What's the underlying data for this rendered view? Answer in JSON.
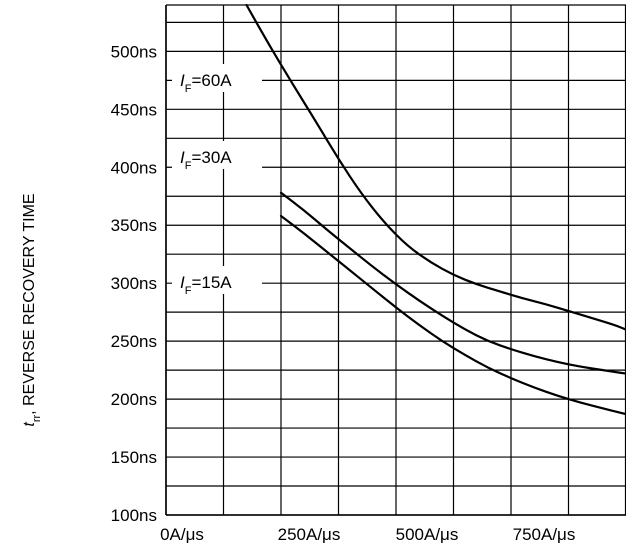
{
  "chart_data": {
    "type": "line",
    "xlabel": "",
    "ylabel": {
      "main": "t",
      "sub": "rr",
      "text": ", REVERSE RECOVERY TIME"
    },
    "x_ticks": [
      "0A/μs",
      "250A/μs",
      "500A/μs",
      "750A/μs"
    ],
    "y_ticks": [
      "100ns",
      "150ns",
      "200ns",
      "250ns",
      "300ns",
      "350ns",
      "400ns",
      "450ns",
      "500ns"
    ],
    "xlim": [
      0,
      1000
    ],
    "ylim": [
      100,
      540
    ],
    "grid": true,
    "series": [
      {
        "name": "60A",
        "label": {
          "var": "I",
          "sub": "F",
          "value": "=60A"
        },
        "x": [
          175,
          225,
          275,
          325,
          375,
          425,
          475,
          525,
          575,
          625,
          675,
          725,
          775,
          825,
          875,
          925,
          975,
          1000
        ],
        "y": [
          540,
          505,
          472,
          440,
          407,
          377,
          352,
          332,
          318,
          307,
          299,
          293,
          287,
          282,
          276,
          270,
          264,
          260
        ]
      },
      {
        "name": "30A",
        "label": {
          "var": "I",
          "sub": "F",
          "value": "=30A"
        },
        "x": [
          250,
          300,
          350,
          400,
          450,
          500,
          550,
          600,
          650,
          700,
          750,
          800,
          850,
          900,
          950,
          1000
        ],
        "y": [
          378,
          363,
          346,
          330,
          314,
          299,
          285,
          272,
          260,
          250,
          243,
          237,
          232,
          228,
          225,
          222
        ]
      },
      {
        "name": "15A",
        "label": {
          "var": "I",
          "sub": "F",
          "value": "=15A"
        },
        "x": [
          250,
          300,
          350,
          400,
          450,
          500,
          550,
          600,
          650,
          700,
          750,
          800,
          850,
          900,
          950,
          1000
        ],
        "y": [
          358,
          343,
          327,
          311,
          295,
          279,
          264,
          250,
          238,
          227,
          218,
          210,
          203,
          197,
          192,
          187
        ]
      }
    ]
  }
}
